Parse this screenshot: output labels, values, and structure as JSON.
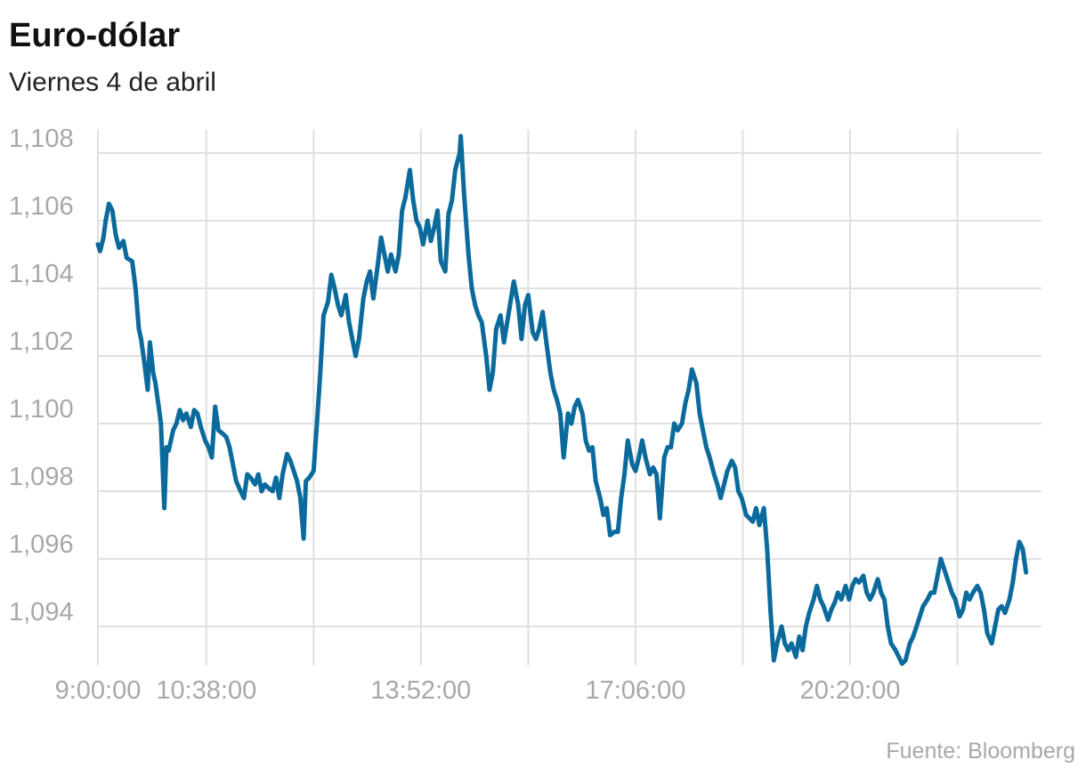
{
  "chart_data": {
    "type": "line",
    "title": "Euro-dólar",
    "subtitle": "Viernes 4 de abril",
    "source": "Fuente: Bloomberg",
    "color": "#0b6a9c",
    "grid": true,
    "xlim": [
      540,
      1393
    ],
    "ylim": [
      1.0929,
      1.1087
    ],
    "xticks": [
      {
        "value": 540,
        "label": "9:00:00"
      },
      {
        "value": 638,
        "label": "10:38:00"
      },
      {
        "value": 735
      },
      {
        "value": 832,
        "label": "13:52:00"
      },
      {
        "value": 929
      },
      {
        "value": 1026,
        "label": "17:06:00"
      },
      {
        "value": 1123
      },
      {
        "value": 1220,
        "label": "20:20:00"
      },
      {
        "value": 1317
      }
    ],
    "yticks": [
      {
        "value": 1.094,
        "label": "1,094"
      },
      {
        "value": 1.096,
        "label": "1,096"
      },
      {
        "value": 1.098,
        "label": "1,098"
      },
      {
        "value": 1.1,
        "label": "1,100"
      },
      {
        "value": 1.102,
        "label": "1,102"
      },
      {
        "value": 1.104,
        "label": "1,104"
      },
      {
        "value": 1.106,
        "label": "1,106"
      },
      {
        "value": 1.108,
        "label": "1,108"
      }
    ],
    "x": [
      540,
      542,
      545,
      547,
      550,
      553,
      556,
      559,
      563,
      566,
      571,
      574,
      577,
      579,
      582,
      585,
      587,
      590,
      592,
      595,
      597,
      600,
      602,
      604,
      608,
      611,
      614,
      617,
      620,
      624,
      627,
      630,
      633,
      637,
      640,
      643,
      646,
      649,
      653,
      656,
      659,
      662,
      665,
      669,
      672,
      675,
      678,
      682,
      685,
      688,
      691,
      694,
      698,
      701,
      704,
      707,
      711,
      714,
      717,
      720,
      723,
      726,
      728,
      731,
      735,
      738,
      741,
      744,
      748,
      751,
      754,
      757,
      760,
      764,
      767,
      770,
      773,
      776,
      780,
      783,
      786,
      789,
      793,
      796,
      799,
      802,
      805,
      809,
      812,
      815,
      818,
      822,
      825,
      828,
      831,
      834,
      838,
      841,
      844,
      847,
      850,
      854,
      857,
      860,
      863,
      867,
      868,
      871,
      875,
      878,
      881,
      884,
      887,
      891,
      894,
      897,
      900,
      904,
      907,
      910,
      913,
      916,
      920,
      923,
      926,
      929,
      933,
      936,
      939,
      942,
      945,
      949,
      952,
      955,
      958,
      961,
      965,
      968,
      971,
      974,
      978,
      981,
      984,
      987,
      990,
      994,
      997,
      1000,
      1003,
      1007,
      1010,
      1013,
      1016,
      1019,
      1023,
      1026,
      1029,
      1032,
      1035,
      1039,
      1042,
      1045,
      1048,
      1052,
      1055,
      1058,
      1061,
      1064,
      1068,
      1071,
      1074,
      1077,
      1081,
      1084,
      1087,
      1090,
      1093,
      1097,
      1100,
      1103,
      1106,
      1109,
      1113,
      1116,
      1119,
      1122,
      1126,
      1129,
      1132,
      1135,
      1138,
      1142,
      1145,
      1148,
      1151,
      1154,
      1158,
      1161,
      1164,
      1167,
      1171,
      1174,
      1177,
      1180,
      1183,
      1187,
      1190,
      1193,
      1196,
      1200,
      1203,
      1206,
      1209,
      1212,
      1216,
      1219,
      1222,
      1225,
      1228,
      1232,
      1235,
      1238,
      1241,
      1245,
      1248,
      1251,
      1254,
      1257,
      1261,
      1264,
      1267,
      1270,
      1274,
      1277,
      1280,
      1283,
      1286,
      1290,
      1293,
      1296,
      1299,
      1302,
      1306,
      1309,
      1312,
      1315,
      1319,
      1322,
      1325,
      1328,
      1331,
      1335,
      1338,
      1341,
      1344,
      1348,
      1351,
      1354,
      1357,
      1360,
      1364,
      1367,
      1370,
      1373,
      1376,
      1379
    ],
    "series": [
      {
        "name": "Euro-dólar",
        "values": [
          1.1053,
          1.1051,
          1.1055,
          1.106,
          1.1065,
          1.1063,
          1.1056,
          1.1052,
          1.1054,
          1.1049,
          1.1048,
          1.104,
          1.1028,
          1.1025,
          1.1018,
          1.101,
          1.1024,
          1.1015,
          1.1012,
          1.1005,
          1.1,
          1.0975,
          1.0993,
          1.0992,
          1.0998,
          1.1,
          1.1004,
          1.1001,
          1.1003,
          1.0999,
          1.1004,
          1.1003,
          1.0999,
          1.0995,
          1.0993,
          1.099,
          1.1005,
          1.0998,
          1.0997,
          1.0996,
          1.0993,
          1.0988,
          1.0983,
          1.098,
          1.0978,
          1.0985,
          1.0984,
          1.0982,
          1.0985,
          1.098,
          1.0982,
          1.0981,
          1.098,
          1.0984,
          1.0978,
          1.0985,
          1.0991,
          1.0989,
          1.0986,
          1.0983,
          1.0978,
          1.0966,
          1.0983,
          1.0984,
          1.0986,
          1.1,
          1.1015,
          1.1032,
          1.1036,
          1.1044,
          1.104,
          1.1035,
          1.1032,
          1.1038,
          1.103,
          1.1025,
          1.102,
          1.1025,
          1.1037,
          1.1042,
          1.1045,
          1.1037,
          1.1047,
          1.1055,
          1.105,
          1.1045,
          1.105,
          1.1045,
          1.105,
          1.1063,
          1.1067,
          1.1075,
          1.1066,
          1.106,
          1.1058,
          1.1053,
          1.106,
          1.1054,
          1.1058,
          1.1063,
          1.1048,
          1.1045,
          1.1062,
          1.1066,
          1.1075,
          1.108,
          1.1085,
          1.1068,
          1.105,
          1.104,
          1.1035,
          1.1032,
          1.103,
          1.102,
          1.101,
          1.1015,
          1.1028,
          1.1032,
          1.1024,
          1.103,
          1.1036,
          1.1042,
          1.1035,
          1.1025,
          1.1035,
          1.1038,
          1.1027,
          1.1025,
          1.1028,
          1.1033,
          1.1025,
          1.1015,
          1.101,
          1.1007,
          1.1003,
          1.099,
          1.1003,
          1.1,
          1.1005,
          1.1007,
          1.1003,
          1.0995,
          1.0992,
          1.0993,
          1.0983,
          1.0978,
          1.0973,
          1.0975,
          1.0967,
          1.0968,
          1.0968,
          1.0978,
          1.0985,
          1.0995,
          1.0988,
          1.0986,
          1.099,
          1.0995,
          1.099,
          1.0985,
          1.0987,
          1.0985,
          1.0972,
          1.099,
          1.0993,
          1.0993,
          1.1,
          1.0998,
          1.1,
          1.1006,
          1.101,
          1.1016,
          1.1012,
          1.1003,
          1.0998,
          1.0993,
          1.099,
          1.0985,
          1.0982,
          1.0978,
          1.0982,
          1.0986,
          1.0989,
          1.0987,
          1.098,
          1.0978,
          1.0973,
          1.0972,
          1.0971,
          1.0975,
          1.097,
          1.0975,
          1.0963,
          1.0945,
          1.093,
          1.0935,
          1.094,
          1.0935,
          1.0933,
          1.0935,
          1.0931,
          1.0937,
          1.0933,
          1.094,
          1.0944,
          1.0948,
          1.0952,
          1.0948,
          1.0946,
          1.0942,
          1.0945,
          1.0947,
          1.095,
          1.0948,
          1.0952,
          1.0948,
          1.0952,
          1.0954,
          1.0953,
          1.0955,
          1.095,
          1.0948,
          1.095,
          1.0954,
          1.095,
          1.0948,
          1.094,
          1.0935,
          1.0933,
          1.0931,
          1.0929,
          1.093,
          1.0935,
          1.0937,
          1.094,
          1.0943,
          1.0946,
          1.0948,
          1.095,
          1.095,
          1.0955,
          1.096,
          1.0956,
          1.0953,
          1.095,
          1.0948,
          1.0943,
          1.0945,
          1.095,
          1.0948,
          1.095,
          1.0952,
          1.095,
          1.0945,
          1.0938,
          1.0935,
          1.094,
          1.0945,
          1.0946,
          1.0944,
          1.0948,
          1.0953,
          1.096,
          1.0965,
          1.0963,
          1.0956
        ]
      }
    ]
  }
}
